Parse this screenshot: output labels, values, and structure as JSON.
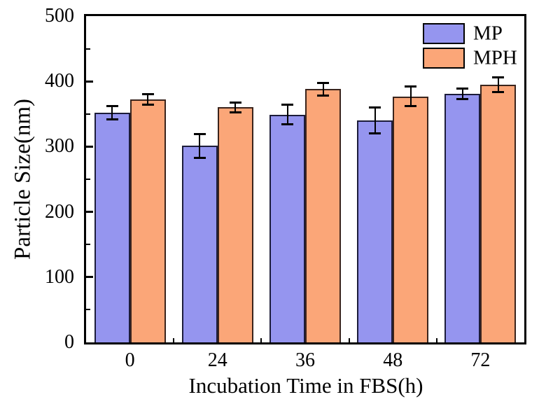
{
  "figure": {
    "background_color": "#ffffff",
    "frame_color": "#000000",
    "text_color": "#000000"
  },
  "chart_data": {
    "type": "bar",
    "title": "",
    "xlabel": "Incubation Time in FBS(h)",
    "ylabel": "Particle Size(nm)",
    "categories": [
      "0",
      "24",
      "36",
      "48",
      "72"
    ],
    "series": [
      {
        "name": "MP",
        "color": "#9595ef",
        "border_color": "#1c1c3a",
        "values": [
          352,
          301,
          349,
          340,
          381
        ],
        "errors": [
          10,
          18,
          15,
          20,
          8
        ]
      },
      {
        "name": "MPH",
        "color": "#fba678",
        "border_color": "#3a241c",
        "values": [
          372,
          360,
          388,
          377,
          395
        ],
        "errors": [
          8,
          7,
          10,
          15,
          11
        ]
      }
    ],
    "ylim": [
      0,
      500
    ],
    "yticks": [
      0,
      100,
      200,
      300,
      400,
      500
    ],
    "error_bars": true,
    "error_bar_color": "#000000",
    "grid": false,
    "legend_position": "top-right",
    "tick_direction": "in"
  }
}
